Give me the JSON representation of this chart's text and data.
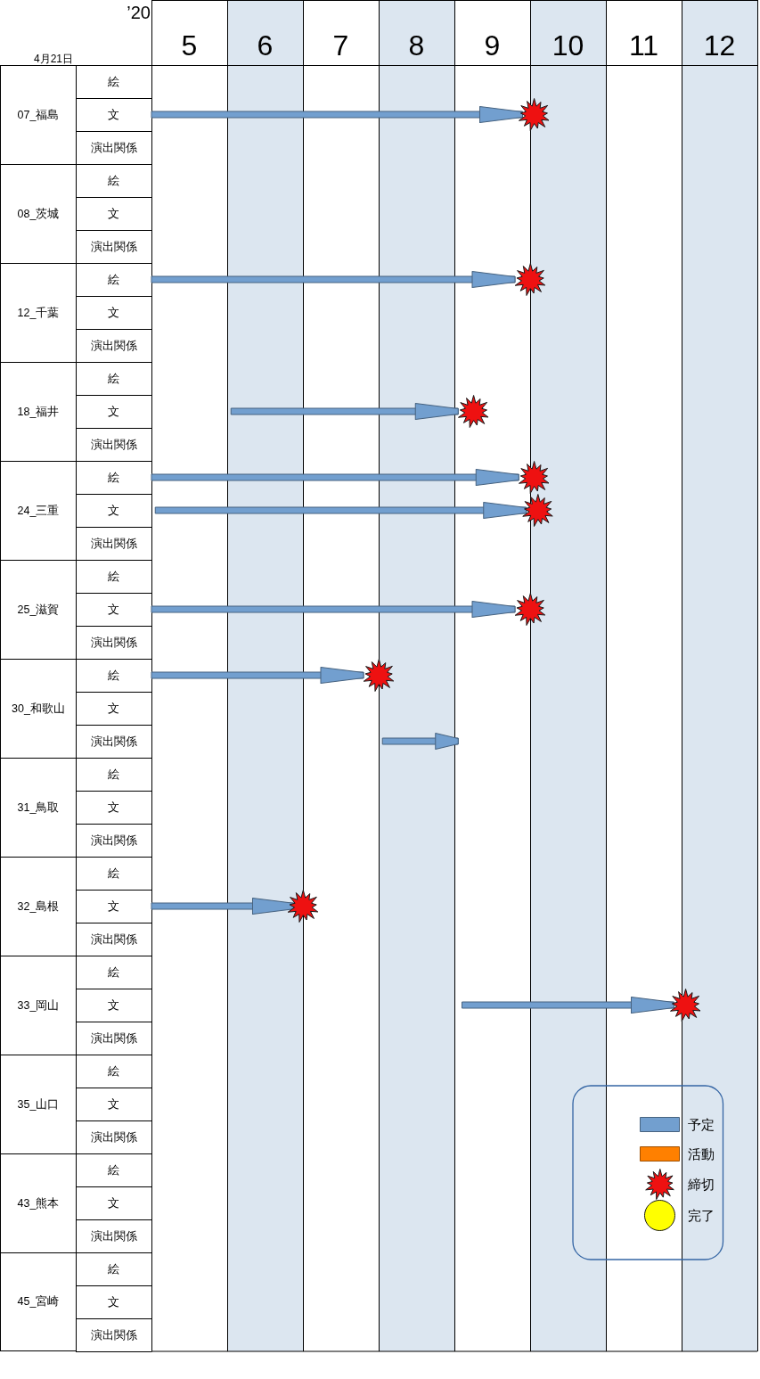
{
  "chart_data": {
    "type": "bar",
    "orientation": "horizontal",
    "title": "4月21日",
    "xlabel": "’20",
    "categories": [
      "絵",
      "文",
      "演出関係",
      "絵",
      "文",
      "演出関係",
      "絵",
      "文",
      "演出関係",
      "絵",
      "文",
      "演出関係",
      "絵",
      "文",
      "演出関係",
      "絵",
      "文",
      "演出関係",
      "絵",
      "文",
      "演出関係",
      "絵",
      "文",
      "演出関係",
      "絵",
      "文",
      "演出関係",
      "絵",
      "文",
      "演出関係",
      "絵",
      "文",
      "演出関係",
      "絵",
      "文",
      "演出関係",
      "絵",
      "文",
      "演出関係"
    ],
    "annotations": [
      "07_福島",
      "08_茨城",
      "12_千葉",
      "18_福井",
      "24_三重",
      "25_滋賀",
      "30_和歌山",
      "31_鳥取",
      "32_島根",
      "33_岡山",
      "35_山口",
      "43_熊本",
      "45_宮崎"
    ],
    "xlim": [
      5,
      13
    ],
    "xticks": [
      {
        "value": 5,
        "label": null
      },
      {
        "value": 5.5,
        "label": "5"
      },
      {
        "value": 6,
        "label": null
      },
      {
        "value": 6.5,
        "label": "6"
      },
      {
        "value": 7,
        "label": null
      },
      {
        "value": 7.5,
        "label": "7"
      },
      {
        "value": 8,
        "label": null
      },
      {
        "value": 8.5,
        "label": "8"
      },
      {
        "value": 9,
        "label": null
      },
      {
        "value": 9.5,
        "label": "9"
      },
      {
        "value": 10,
        "label": null
      },
      {
        "value": 10.5,
        "label": "10"
      },
      {
        "value": 11,
        "label": null
      },
      {
        "value": 11.5,
        "label": "11"
      },
      {
        "value": 12,
        "label": null
      },
      {
        "value": 12.5,
        "label": "12"
      },
      {
        "value": 13,
        "label": null
      }
    ],
    "grid": "x",
    "legend": "bottom right",
    "bands": [
      {
        "axis": "x",
        "from": 6,
        "to": 7,
        "color": "#dce6f0"
      },
      {
        "axis": "x",
        "from": 8,
        "to": 9,
        "color": "#dce6f0"
      },
      {
        "axis": "x",
        "from": 10,
        "to": 11,
        "color": "#dce6f0"
      },
      {
        "axis": "x",
        "from": 12,
        "to": 13,
        "color": "#dce6f0"
      }
    ],
    "series": [
      {
        "name": "予定",
        "type": "bar",
        "color": "#729fcf",
        "base": [
          null,
          5,
          null,
          null,
          null,
          null,
          5,
          null,
          null,
          null,
          6.05,
          null,
          5,
          5.05,
          null,
          null,
          5,
          null,
          5,
          null,
          8.05,
          null,
          null,
          null,
          null,
          5,
          null,
          null,
          9.1,
          null,
          null,
          null,
          null,
          null,
          null,
          null,
          null,
          null,
          null
        ],
        "values": [
          null,
          4.9,
          null,
          null,
          null,
          null,
          4.8,
          null,
          null,
          null,
          3.0,
          null,
          4.85,
          4.9,
          null,
          null,
          4.8,
          null,
          2.8,
          null,
          1.0,
          null,
          null,
          null,
          null,
          1.9,
          null,
          null,
          2.8,
          null,
          null,
          null,
          null,
          null,
          null,
          null,
          null,
          null,
          null
        ]
      },
      {
        "name": "活動",
        "type": "bar",
        "color": "#ff8000",
        "values": [
          null,
          null,
          null,
          null,
          null,
          null,
          null,
          null,
          null,
          null,
          null,
          null,
          null,
          null,
          null,
          null,
          null,
          null,
          null,
          null,
          null,
          null,
          null,
          null,
          null,
          null,
          null,
          null,
          null,
          null,
          null,
          null,
          null,
          null,
          null,
          null,
          null,
          null,
          null
        ]
      },
      {
        "name": "締切",
        "type": "scatter",
        "color": "#ee1111",
        "marker": "star",
        "values": [
          null,
          10.05,
          null,
          null,
          null,
          null,
          10.0,
          null,
          null,
          null,
          9.25,
          null,
          10.05,
          10.1,
          null,
          null,
          10.0,
          null,
          8.0,
          null,
          null,
          null,
          null,
          null,
          null,
          7.0,
          null,
          null,
          12.05,
          null,
          null,
          null,
          null,
          null,
          null,
          null,
          null,
          null,
          null
        ]
      },
      {
        "name": "完了",
        "type": "scatter",
        "color": "#ffff00",
        "marker": "circle",
        "values": [
          null,
          null,
          null,
          null,
          null,
          null,
          null,
          null,
          null,
          null,
          null,
          null,
          null,
          null,
          null,
          null,
          null,
          null,
          null,
          null,
          null,
          null,
          null,
          null,
          null,
          null,
          null,
          null,
          null,
          null,
          null,
          null,
          null,
          null,
          null,
          null,
          null,
          null,
          null
        ]
      }
    ]
  }
}
